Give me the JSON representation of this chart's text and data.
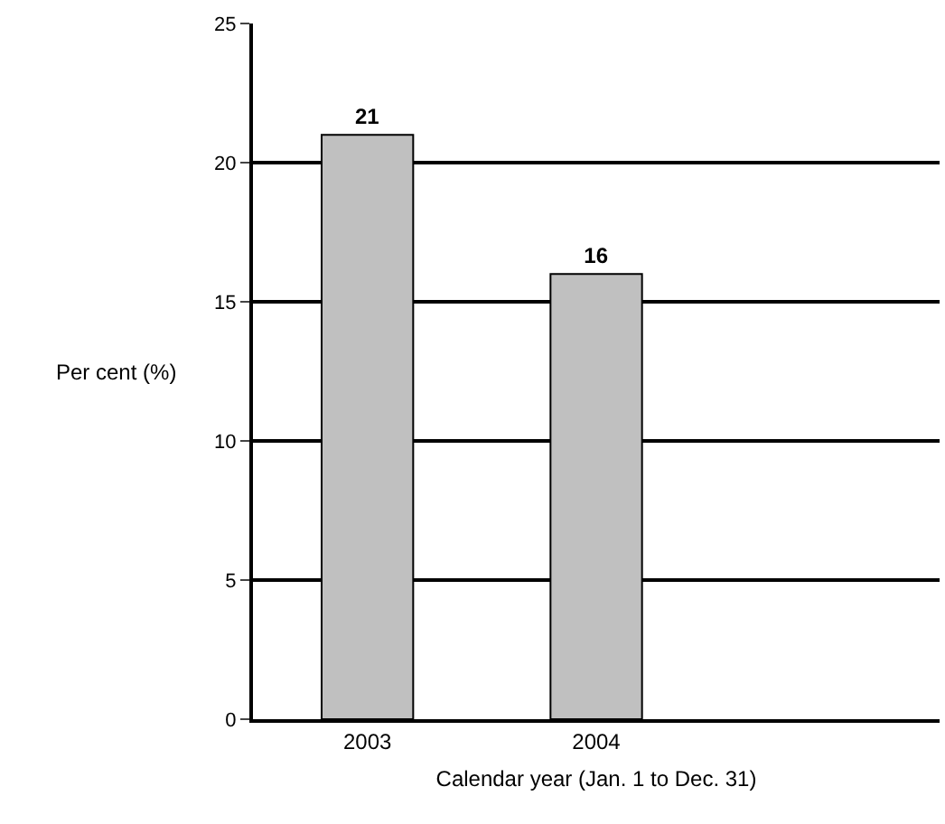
{
  "chart_data": {
    "type": "bar",
    "xlabel": "Calendar year (Jan. 1 to Dec. 31)",
    "ylabel": "Per cent (%)",
    "categories": [
      "2003",
      "2004",
      null
    ],
    "values": [
      21,
      16,
      null
    ],
    "color": "#c0c0c0",
    "data_labels": true,
    "ylim": [
      0,
      25
    ],
    "yticks": [
      0,
      5,
      10,
      15,
      20,
      25
    ],
    "grid": "y"
  }
}
